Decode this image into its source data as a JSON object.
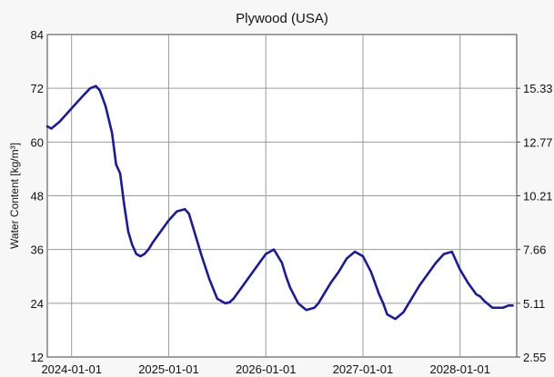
{
  "chart_data": {
    "type": "line",
    "title": "Plywood (USA)",
    "ylabel": "Water Content [kg/m³]",
    "xlabel": "",
    "x_tick_labels": [
      "2024-01-01",
      "2025-01-01",
      "2026-01-01",
      "2027-01-01",
      "2028-01-01"
    ],
    "x_ticks_months": [
      0,
      12,
      24,
      36,
      48
    ],
    "xlim_months": [
      -3,
      55
    ],
    "ylim": [
      12,
      84
    ],
    "y_ticks": [
      12,
      24,
      36,
      48,
      60,
      72,
      84
    ],
    "y_tick_labels": [
      "12",
      "24",
      "36",
      "48",
      "60",
      "72",
      "84"
    ],
    "y2_tick_labels": [
      "2.55",
      "5.11",
      "7.66",
      "10.21",
      "12.77",
      "15.33"
    ],
    "y2_tick_values": [
      12,
      24,
      36,
      48,
      60,
      72
    ],
    "grid": true,
    "series_color": "#1a1aa0",
    "series": [
      {
        "x_months": [
          -3,
          -2.5,
          -1.5,
          -0.5,
          0.5,
          1.5,
          2.3,
          3.0,
          3.5,
          4.2,
          5.0,
          5.5,
          6.0,
          6.5,
          7.0,
          7.5,
          8.0,
          8.5,
          9.0,
          9.5,
          10.0,
          11.0,
          12.0,
          13.0,
          14.0,
          14.5,
          15.0,
          15.5,
          16.0,
          17.0,
          18.0,
          19.0,
          19.5,
          20.0,
          21.0,
          22.0,
          23.0,
          24.0,
          25.0,
          26.0,
          26.5,
          27.0,
          28.0,
          29.0,
          30.0,
          30.5,
          31.0,
          32.0,
          33.0,
          34.0,
          35.0,
          36.0,
          37.0,
          38.0,
          38.5,
          39.0,
          40.0,
          41.0,
          42.0,
          42.5,
          43.0,
          44.0,
          45.0,
          46.0,
          47.0,
          48.0,
          49.0,
          50.0,
          50.5,
          51.0,
          52.0,
          52.8,
          53.3,
          54.0,
          54.5
        ],
        "values": [
          63.5,
          63.0,
          64.5,
          66.5,
          68.5,
          70.5,
          72.0,
          72.5,
          71.5,
          68.0,
          62.0,
          55.0,
          53.0,
          46.0,
          40.0,
          37.0,
          35.0,
          34.5,
          35.0,
          36.0,
          37.5,
          40.0,
          42.5,
          44.5,
          45.0,
          44.0,
          41.0,
          38.0,
          35.0,
          29.5,
          25.0,
          24.0,
          24.2,
          25.0,
          27.5,
          30.0,
          32.5,
          35.0,
          36.0,
          33.0,
          30.0,
          27.5,
          24.0,
          22.5,
          23.0,
          24.0,
          25.5,
          28.5,
          31.0,
          34.0,
          35.5,
          34.5,
          31.0,
          26.0,
          24.0,
          21.5,
          20.5,
          22.0,
          25.0,
          26.5,
          28.0,
          30.5,
          33.0,
          35.0,
          35.5,
          31.5,
          28.5,
          26.0,
          25.5,
          24.5,
          23.0,
          23.0,
          23.0,
          23.5,
          23.5
        ]
      }
    ]
  }
}
